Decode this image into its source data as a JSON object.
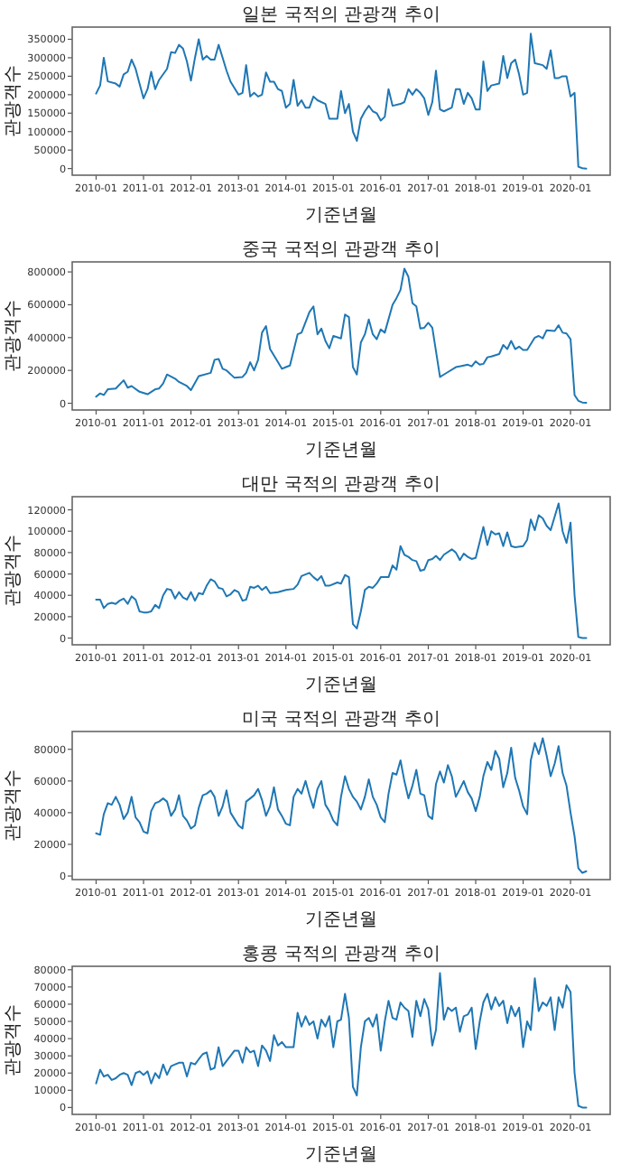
{
  "chart_data": [
    {
      "type": "line",
      "title": "일본 국적의 관광객 추이",
      "xlabel": "기준년월",
      "ylabel": "관광객수",
      "color": "#1f77b4",
      "xlim": [
        "2009-07",
        "2020-11"
      ],
      "ylim": [
        -18000,
        383000
      ],
      "xticks": [
        "2010-01",
        "2011-01",
        "2012-01",
        "2013-01",
        "2014-01",
        "2015-01",
        "2016-01",
        "2017-01",
        "2018-01",
        "2019-01",
        "2020-01"
      ],
      "yticks": [
        0,
        50000,
        100000,
        150000,
        200000,
        250000,
        300000,
        350000
      ],
      "x": [
        "2010-01",
        "2010-02",
        "2010-03",
        "2010-04",
        "2010-06",
        "2010-07",
        "2010-08",
        "2010-09",
        "2010-10",
        "2010-11",
        "2010-12",
        "2011-01",
        "2011-02",
        "2011-03",
        "2011-04",
        "2011-05",
        "2011-07",
        "2011-08",
        "2011-09",
        "2011-10",
        "2011-11",
        "2011-12",
        "2012-01",
        "2012-02",
        "2012-03",
        "2012-04",
        "2012-05",
        "2012-06",
        "2012-07",
        "2012-08",
        "2012-09",
        "2012-10",
        "2012-11",
        "2013-01",
        "2013-02",
        "2013-03",
        "2013-04",
        "2013-05",
        "2013-06",
        "2013-07",
        "2013-08",
        "2013-09",
        "2013-10",
        "2013-11",
        "2013-12",
        "2014-01",
        "2014-02",
        "2014-03",
        "2014-04",
        "2014-05",
        "2014-06",
        "2014-07",
        "2014-08",
        "2014-09",
        "2014-11",
        "2014-12",
        "2015-02",
        "2015-03",
        "2015-04",
        "2015-05",
        "2015-06",
        "2015-07",
        "2015-08",
        "2015-09",
        "2015-10",
        "2015-11",
        "2015-12",
        "2016-01",
        "2016-02",
        "2016-03",
        "2016-04",
        "2016-06",
        "2016-07",
        "2016-08",
        "2016-09",
        "2016-10",
        "2016-11",
        "2016-12",
        "2017-01",
        "2017-02",
        "2017-03",
        "2017-04",
        "2017-05",
        "2017-07",
        "2017-08",
        "2017-09",
        "2017-10",
        "2017-11",
        "2017-12",
        "2018-01",
        "2018-02",
        "2018-03",
        "2018-04",
        "2018-05",
        "2018-07",
        "2018-08",
        "2018-09",
        "2018-10",
        "2018-11",
        "2018-12",
        "2019-01",
        "2019-02",
        "2019-03",
        "2019-04",
        "2019-06",
        "2019-07",
        "2019-08",
        "2019-09",
        "2019-10",
        "2019-11",
        "2019-12",
        "2020-01",
        "2020-02",
        "2020-03",
        "2020-04",
        "2020-05"
      ],
      "values": [
        203000,
        225000,
        300000,
        236000,
        230000,
        222000,
        255000,
        262000,
        295000,
        270000,
        230000,
        190000,
        215000,
        262000,
        215000,
        240000,
        270000,
        315000,
        313000,
        335000,
        325000,
        290000,
        238000,
        300000,
        350000,
        295000,
        305000,
        295000,
        295000,
        335000,
        300000,
        265000,
        235000,
        200000,
        205000,
        280000,
        195000,
        205000,
        195000,
        200000,
        260000,
        235000,
        235000,
        215000,
        210000,
        165000,
        175000,
        240000,
        170000,
        185000,
        165000,
        165000,
        195000,
        185000,
        175000,
        135000,
        135000,
        210000,
        150000,
        175000,
        100000,
        75000,
        135000,
        155000,
        170000,
        155000,
        150000,
        130000,
        140000,
        215000,
        170000,
        175000,
        180000,
        215000,
        200000,
        215000,
        205000,
        190000,
        145000,
        180000,
        265000,
        160000,
        155000,
        165000,
        215000,
        215000,
        175000,
        205000,
        190000,
        160000,
        160000,
        290000,
        210000,
        225000,
        230000,
        305000,
        245000,
        285000,
        295000,
        255000,
        200000,
        205000,
        365000,
        285000,
        280000,
        270000,
        320000,
        245000,
        245000,
        250000,
        250000,
        195000,
        205000,
        5000,
        1000,
        0
      ]
    },
    {
      "type": "line",
      "title": "중국 국적의 관광객 추이",
      "xlabel": "기준년월",
      "ylabel": "관광객수",
      "color": "#1f77b4",
      "xlim": [
        "2009-07",
        "2020-11"
      ],
      "ylim": [
        -41000,
        861000
      ],
      "xticks": [
        "2010-01",
        "2011-01",
        "2012-01",
        "2013-01",
        "2014-01",
        "2015-01",
        "2016-01",
        "2017-01",
        "2018-01",
        "2019-01",
        "2020-01"
      ],
      "yticks": [
        0,
        200000,
        400000,
        600000,
        800000
      ],
      "x": [
        "2010-01",
        "2010-02",
        "2010-03",
        "2010-04",
        "2010-06",
        "2010-08",
        "2010-09",
        "2010-10",
        "2010-12",
        "2011-02",
        "2011-04",
        "2011-05",
        "2011-06",
        "2011-07",
        "2011-09",
        "2011-10",
        "2011-12",
        "2012-01",
        "2012-03",
        "2012-06",
        "2012-07",
        "2012-08",
        "2012-09",
        "2012-10",
        "2012-12",
        "2013-02",
        "2013-03",
        "2013-04",
        "2013-05",
        "2013-06",
        "2013-07",
        "2013-08",
        "2013-09",
        "2013-11",
        "2013-12",
        "2014-01",
        "2014-02",
        "2014-04",
        "2014-05",
        "2014-07",
        "2014-08",
        "2014-09",
        "2014-10",
        "2014-11",
        "2014-12",
        "2015-01",
        "2015-03",
        "2015-04",
        "2015-05",
        "2015-06",
        "2015-07",
        "2015-08",
        "2015-09",
        "2015-10",
        "2015-11",
        "2015-12",
        "2016-01",
        "2016-02",
        "2016-04",
        "2016-05",
        "2016-06",
        "2016-07",
        "2016-08",
        "2016-09",
        "2016-10",
        "2016-11",
        "2016-12",
        "2017-01",
        "2017-02",
        "2017-04",
        "2017-05",
        "2017-06",
        "2017-08",
        "2017-10",
        "2017-11",
        "2017-12",
        "2018-01",
        "2018-02",
        "2018-03",
        "2018-04",
        "2018-05",
        "2018-07",
        "2018-08",
        "2018-09",
        "2018-10",
        "2018-11",
        "2018-12",
        "2019-01",
        "2019-02",
        "2019-04",
        "2019-05",
        "2019-06",
        "2019-07",
        "2019-09",
        "2019-10",
        "2019-11",
        "2019-12",
        "2020-01",
        "2020-02",
        "2020-03",
        "2020-04",
        "2020-05"
      ],
      "values": [
        40000,
        60000,
        50000,
        85000,
        90000,
        140000,
        95000,
        105000,
        70000,
        55000,
        85000,
        90000,
        120000,
        175000,
        150000,
        130000,
        105000,
        80000,
        165000,
        185000,
        265000,
        270000,
        210000,
        200000,
        155000,
        160000,
        185000,
        250000,
        200000,
        265000,
        430000,
        470000,
        330000,
        250000,
        210000,
        220000,
        230000,
        420000,
        430000,
        555000,
        590000,
        420000,
        455000,
        380000,
        335000,
        410000,
        395000,
        540000,
        525000,
        220000,
        175000,
        370000,
        420000,
        510000,
        420000,
        390000,
        450000,
        430000,
        600000,
        640000,
        690000,
        820000,
        770000,
        610000,
        590000,
        455000,
        460000,
        490000,
        460000,
        160000,
        175000,
        190000,
        220000,
        230000,
        235000,
        225000,
        255000,
        235000,
        240000,
        280000,
        285000,
        300000,
        355000,
        330000,
        380000,
        330000,
        345000,
        325000,
        325000,
        400000,
        410000,
        395000,
        445000,
        440000,
        475000,
        430000,
        425000,
        390000,
        50000,
        15000,
        5000,
        3000
      ]
    },
    {
      "type": "line",
      "title": "대만 국적의 관광객 추이",
      "xlabel": "기준년월",
      "ylabel": "관광객수",
      "color": "#1f77b4",
      "xlim": [
        "2009-07",
        "2020-11"
      ],
      "ylim": [
        -6300,
        132300
      ],
      "xticks": [
        "2010-01",
        "2011-01",
        "2012-01",
        "2013-01",
        "2014-01",
        "2015-01",
        "2016-01",
        "2017-01",
        "2018-01",
        "2019-01",
        "2020-01"
      ],
      "yticks": [
        0,
        20000,
        40000,
        60000,
        80000,
        100000,
        120000
      ],
      "x": [
        "2010-01",
        "2010-02",
        "2010-03",
        "2010-04",
        "2010-05",
        "2010-06",
        "2010-07",
        "2010-08",
        "2010-09",
        "2010-10",
        "2010-11",
        "2010-12",
        "2011-01",
        "2011-02",
        "2011-03",
        "2011-04",
        "2011-05",
        "2011-06",
        "2011-07",
        "2011-08",
        "2011-09",
        "2011-10",
        "2011-11",
        "2011-12",
        "2012-01",
        "2012-02",
        "2012-03",
        "2012-04",
        "2012-05",
        "2012-06",
        "2012-07",
        "2012-08",
        "2012-09",
        "2012-10",
        "2012-11",
        "2012-12",
        "2013-01",
        "2013-02",
        "2013-03",
        "2013-04",
        "2013-05",
        "2013-06",
        "2013-07",
        "2013-08",
        "2013-09",
        "2013-11",
        "2014-01",
        "2014-03",
        "2014-04",
        "2014-05",
        "2014-07",
        "2014-08",
        "2014-09",
        "2014-10",
        "2014-11",
        "2014-12",
        "2015-02",
        "2015-03",
        "2015-04",
        "2015-05",
        "2015-06",
        "2015-07",
        "2015-08",
        "2015-09",
        "2015-10",
        "2015-11",
        "2015-12",
        "2016-01",
        "2016-03",
        "2016-04",
        "2016-05",
        "2016-06",
        "2016-07",
        "2016-08",
        "2016-09",
        "2016-10",
        "2016-11",
        "2016-12",
        "2017-01",
        "2017-02",
        "2017-03",
        "2017-04",
        "2017-05",
        "2017-07",
        "2017-08",
        "2017-09",
        "2017-10",
        "2017-11",
        "2017-12",
        "2018-01",
        "2018-02",
        "2018-03",
        "2018-04",
        "2018-05",
        "2018-06",
        "2018-07",
        "2018-08",
        "2018-09",
        "2018-10",
        "2018-11",
        "2019-01",
        "2019-02",
        "2019-03",
        "2019-04",
        "2019-05",
        "2019-06",
        "2019-07",
        "2019-08",
        "2019-10",
        "2019-11",
        "2019-12",
        "2020-01",
        "2020-02",
        "2020-03",
        "2020-04",
        "2020-05"
      ],
      "values": [
        36000,
        36000,
        28000,
        32000,
        33000,
        32000,
        35000,
        37000,
        32000,
        39000,
        36000,
        25000,
        24000,
        24000,
        25000,
        31000,
        28000,
        40000,
        46000,
        45000,
        37000,
        43000,
        38000,
        36000,
        43000,
        35000,
        42000,
        41000,
        49000,
        55000,
        53000,
        47000,
        46000,
        39000,
        41000,
        45000,
        43000,
        35000,
        36000,
        48000,
        47000,
        49000,
        45000,
        48000,
        42000,
        43000,
        45000,
        46000,
        50000,
        58000,
        61000,
        57000,
        54000,
        58000,
        49000,
        49000,
        52000,
        51000,
        59000,
        57000,
        13000,
        9000,
        25000,
        45000,
        48000,
        47000,
        51000,
        57000,
        57000,
        68000,
        64000,
        86000,
        78000,
        76000,
        73000,
        72000,
        63000,
        64000,
        73000,
        74000,
        77000,
        73000,
        78000,
        83000,
        80000,
        73000,
        79000,
        76000,
        74000,
        75000,
        90000,
        104000,
        87000,
        100000,
        97000,
        98000,
        86000,
        99000,
        86000,
        85000,
        86000,
        92000,
        111000,
        101000,
        115000,
        112000,
        105000,
        101000,
        126000,
        100000,
        89000,
        108000,
        40000,
        1000,
        0,
        0
      ]
    },
    {
      "type": "line",
      "title": "미국 국적의 관광객 추이",
      "xlabel": "기준년월",
      "ylabel": "관광객수",
      "color": "#1f77b4",
      "xlim": [
        "2009-07",
        "2020-11"
      ],
      "ylim": [
        -2250,
        91250
      ],
      "xticks": [
        "2010-01",
        "2011-01",
        "2012-01",
        "2013-01",
        "2014-01",
        "2015-01",
        "2016-01",
        "2017-01",
        "2018-01",
        "2019-01",
        "2020-01"
      ],
      "yticks": [
        0,
        20000,
        40000,
        60000,
        80000
      ],
      "x": [
        "2010-01",
        "2010-02",
        "2010-03",
        "2010-04",
        "2010-05",
        "2010-06",
        "2010-07",
        "2010-08",
        "2010-09",
        "2010-10",
        "2010-11",
        "2010-12",
        "2011-01",
        "2011-02",
        "2011-03",
        "2011-04",
        "2011-05",
        "2011-06",
        "2011-07",
        "2011-08",
        "2011-09",
        "2011-10",
        "2011-11",
        "2011-12",
        "2012-01",
        "2012-02",
        "2012-03",
        "2012-04",
        "2012-05",
        "2012-06",
        "2012-07",
        "2012-08",
        "2012-09",
        "2012-10",
        "2012-11",
        "2012-12",
        "2013-01",
        "2013-02",
        "2013-03",
        "2013-04",
        "2013-05",
        "2013-06",
        "2013-07",
        "2013-08",
        "2013-09",
        "2013-10",
        "2013-11",
        "2013-12",
        "2014-01",
        "2014-02",
        "2014-03",
        "2014-04",
        "2014-05",
        "2014-06",
        "2014-07",
        "2014-08",
        "2014-09",
        "2014-10",
        "2014-11",
        "2014-12",
        "2015-01",
        "2015-02",
        "2015-03",
        "2015-04",
        "2015-05",
        "2015-06",
        "2015-07",
        "2015-08",
        "2015-09",
        "2015-10",
        "2015-11",
        "2015-12",
        "2016-01",
        "2016-02",
        "2016-03",
        "2016-04",
        "2016-05",
        "2016-06",
        "2016-07",
        "2016-08",
        "2016-09",
        "2016-10",
        "2016-11",
        "2016-12",
        "2017-01",
        "2017-02",
        "2017-03",
        "2017-04",
        "2017-05",
        "2017-06",
        "2017-07",
        "2017-08",
        "2017-09",
        "2017-10",
        "2017-11",
        "2017-12",
        "2018-01",
        "2018-02",
        "2018-03",
        "2018-04",
        "2018-05",
        "2018-06",
        "2018-07",
        "2018-08",
        "2018-09",
        "2018-10",
        "2018-11",
        "2018-12",
        "2019-01",
        "2019-02",
        "2019-03",
        "2019-04",
        "2019-05",
        "2019-06",
        "2019-07",
        "2019-08",
        "2019-09",
        "2019-10",
        "2019-11",
        "2019-12",
        "2020-01",
        "2020-02",
        "2020-03",
        "2020-04",
        "2020-05"
      ],
      "values": [
        27000,
        26000,
        39000,
        46000,
        45000,
        50000,
        45000,
        36000,
        40000,
        50000,
        37000,
        34000,
        28000,
        27000,
        41000,
        46000,
        47000,
        49000,
        47000,
        38000,
        42000,
        51000,
        38000,
        35000,
        30000,
        32000,
        43000,
        51000,
        52000,
        54000,
        50000,
        38000,
        44000,
        54000,
        40000,
        36000,
        32000,
        30000,
        47000,
        49000,
        51000,
        55000,
        48000,
        38000,
        44000,
        56000,
        42000,
        38000,
        33000,
        32000,
        50000,
        55000,
        52000,
        60000,
        51000,
        43000,
        55000,
        60000,
        45000,
        41000,
        35000,
        32000,
        50000,
        63000,
        55000,
        50000,
        47000,
        42000,
        50000,
        61000,
        50000,
        45000,
        37000,
        34000,
        52000,
        65000,
        64000,
        73000,
        60000,
        49000,
        57000,
        67000,
        52000,
        51000,
        38000,
        36000,
        58000,
        66000,
        59000,
        70000,
        63000,
        50000,
        55000,
        60000,
        53000,
        49000,
        41000,
        50000,
        63000,
        72000,
        67000,
        79000,
        74000,
        56000,
        65000,
        81000,
        62000,
        54000,
        44000,
        39000,
        73000,
        84000,
        77000,
        87000,
        76000,
        63000,
        71000,
        82000,
        65000,
        57000,
        40000,
        25000,
        5000,
        2000,
        3000
      ]
    },
    {
      "type": "line",
      "title": "홍콩 국적의 관광객 추이",
      "xlabel": "기준년월",
      "ylabel": "관광객수",
      "color": "#1f77b4",
      "xlim": [
        "2009-07",
        "2020-11"
      ],
      "ylim": [
        -4000,
        82000
      ],
      "xticks": [
        "2010-01",
        "2011-01",
        "2012-01",
        "2013-01",
        "2014-01",
        "2015-01",
        "2016-01",
        "2017-01",
        "2018-01",
        "2019-01",
        "2020-01"
      ],
      "yticks": [
        0,
        10000,
        20000,
        30000,
        40000,
        50000,
        60000,
        70000,
        80000
      ],
      "x": [
        "2010-01",
        "2010-02",
        "2010-03",
        "2010-04",
        "2010-05",
        "2010-06",
        "2010-07",
        "2010-08",
        "2010-09",
        "2010-10",
        "2010-11",
        "2010-12",
        "2011-01",
        "2011-02",
        "2011-03",
        "2011-04",
        "2011-05",
        "2011-06",
        "2011-07",
        "2011-08",
        "2011-09",
        "2011-10",
        "2011-11",
        "2011-12",
        "2012-01",
        "2012-02",
        "2012-03",
        "2012-04",
        "2012-05",
        "2012-06",
        "2012-07",
        "2012-08",
        "2012-09",
        "2012-10",
        "2012-11",
        "2012-12",
        "2013-01",
        "2013-02",
        "2013-03",
        "2013-04",
        "2013-05",
        "2013-06",
        "2013-07",
        "2013-08",
        "2013-09",
        "2013-10",
        "2013-11",
        "2013-12",
        "2014-01",
        "2014-02",
        "2014-03",
        "2014-04",
        "2014-05",
        "2014-06",
        "2014-07",
        "2014-08",
        "2014-09",
        "2014-10",
        "2014-11",
        "2014-12",
        "2015-01",
        "2015-02",
        "2015-03",
        "2015-04",
        "2015-05",
        "2015-06",
        "2015-07",
        "2015-08",
        "2015-09",
        "2015-10",
        "2015-11",
        "2015-12",
        "2016-01",
        "2016-02",
        "2016-03",
        "2016-04",
        "2016-05",
        "2016-06",
        "2016-07",
        "2016-08",
        "2016-09",
        "2016-10",
        "2016-11",
        "2016-12",
        "2017-01",
        "2017-02",
        "2017-03",
        "2017-04",
        "2017-05",
        "2017-06",
        "2017-07",
        "2017-08",
        "2017-09",
        "2017-10",
        "2017-11",
        "2017-12",
        "2018-01",
        "2018-02",
        "2018-03",
        "2018-04",
        "2018-05",
        "2018-06",
        "2018-07",
        "2018-08",
        "2018-09",
        "2018-10",
        "2018-11",
        "2018-12",
        "2019-01",
        "2019-02",
        "2019-03",
        "2019-04",
        "2019-05",
        "2019-06",
        "2019-07",
        "2019-08",
        "2019-09",
        "2019-10",
        "2019-11",
        "2019-12",
        "2020-01",
        "2020-02",
        "2020-03",
        "2020-04",
        "2020-05"
      ],
      "values": [
        14000,
        22000,
        18000,
        19000,
        16000,
        17000,
        19000,
        20000,
        19000,
        13000,
        20000,
        21000,
        19000,
        21000,
        14000,
        20000,
        17000,
        25000,
        19000,
        24000,
        25000,
        26000,
        26000,
        18000,
        26000,
        25000,
        28000,
        31000,
        32000,
        22000,
        23000,
        35000,
        24000,
        27000,
        30000,
        33000,
        33000,
        26000,
        35000,
        32000,
        33000,
        24000,
        36000,
        33000,
        27000,
        42000,
        36000,
        38000,
        35000,
        35000,
        35000,
        55000,
        47000,
        53000,
        48000,
        50000,
        40000,
        51000,
        47000,
        53000,
        35000,
        50000,
        51000,
        66000,
        52000,
        12000,
        7000,
        35000,
        50000,
        52000,
        47000,
        54000,
        33000,
        50000,
        62000,
        52000,
        51000,
        61000,
        58000,
        56000,
        41000,
        62000,
        53000,
        63000,
        57000,
        36000,
        45000,
        78000,
        51000,
        58000,
        56000,
        58000,
        44000,
        53000,
        54000,
        58000,
        34000,
        50000,
        61000,
        66000,
        57000,
        64000,
        59000,
        62000,
        49000,
        59000,
        53000,
        58000,
        35000,
        50000,
        45000,
        75000,
        56000,
        61000,
        59000,
        64000,
        45000,
        64000,
        58000,
        71000,
        67000,
        20000,
        1000,
        0,
        0
      ]
    }
  ]
}
